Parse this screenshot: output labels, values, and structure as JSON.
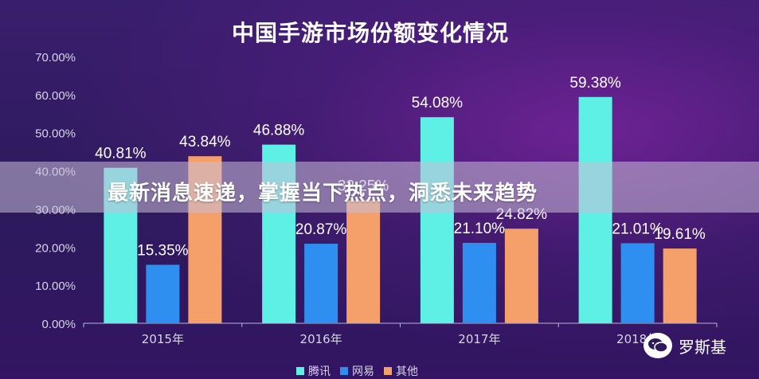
{
  "chart_data": {
    "type": "bar",
    "title": "中国手游市场份额变化情况",
    "categories": [
      "2015年",
      "2016年",
      "2017年",
      "2018年"
    ],
    "series": [
      {
        "name": "腾讯",
        "color": "#5ef0e4",
        "values": [
          40.81,
          46.88,
          54.08,
          59.38
        ],
        "labels": [
          "40.81%",
          "46.88%",
          "54.08%",
          "59.38%"
        ]
      },
      {
        "name": "网易",
        "color": "#2f8ff0",
        "values": [
          15.35,
          20.87,
          21.1,
          21.01
        ],
        "labels": [
          "15.35%",
          "20.87%",
          "21.10%",
          "21.01%"
        ]
      },
      {
        "name": "其他",
        "color": "#f5a06a",
        "values": [
          43.84,
          32.25,
          24.82,
          19.61
        ],
        "labels": [
          "43.84%",
          "32.25%",
          "24.82%",
          "19.61%"
        ]
      }
    ],
    "yticks": [
      "0.00%",
      "10.00%",
      "20.00%",
      "30.00%",
      "40.00%",
      "50.00%",
      "60.00%",
      "70.00%"
    ],
    "ylim": [
      0,
      70
    ],
    "legend_position": "bottom"
  },
  "banner": {
    "text": "最新消息速递，掌握当下热点，洞悉未来趋势"
  },
  "watermark": {
    "text": "罗斯基",
    "icon": "wechat-icon"
  }
}
